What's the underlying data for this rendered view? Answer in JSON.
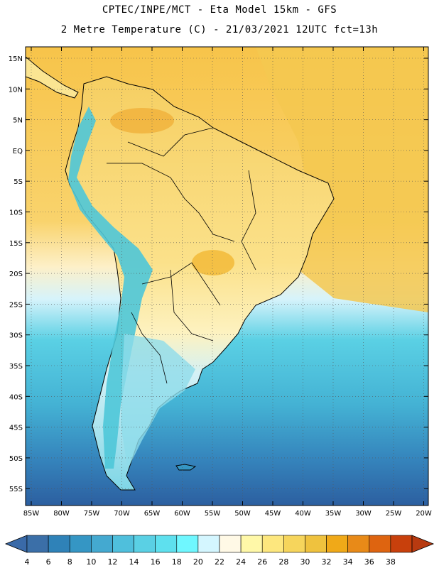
{
  "header": {
    "title_line1": "CPTEC/INPE/MCT -  Eta Model 15km - GFS",
    "title_line2": "2 Metre Temperature (C) - 21/03/2021 12UTC fct=13h"
  },
  "map": {
    "lat_labels": [
      "15N",
      "10N",
      "5N",
      "EQ",
      "5S",
      "10S",
      "15S",
      "20S",
      "25S",
      "30S",
      "35S",
      "40S",
      "45S",
      "50S",
      "55S"
    ],
    "lon_labels": [
      "85W",
      "80W",
      "75W",
      "70W",
      "65W",
      "60W",
      "55W",
      "50W",
      "45W",
      "40W",
      "35W",
      "30W",
      "25W",
      "20W"
    ],
    "gridlines": true,
    "ocean_color_north": "#f7c44a",
    "ocean_color_south": "#2f69a8",
    "land_color": "#fbe592",
    "andes_color": "#4ec6d8"
  },
  "colorbar": {
    "labels": [
      "4",
      "6",
      "8",
      "10",
      "12",
      "14",
      "16",
      "18",
      "20",
      "22",
      "24",
      "26",
      "28",
      "30",
      "32",
      "34",
      "36",
      "38"
    ],
    "colors": [
      "#3b6fa8",
      "#2f82b8",
      "#3596c4",
      "#44a9d0",
      "#4fbfdc",
      "#5ad0e4",
      "#5ee0ee",
      "#6ff7ff",
      "#d4f6ff",
      "#fff9e6",
      "#fff8a8",
      "#fde77e",
      "#f6d55c",
      "#efc23e",
      "#f0a918",
      "#e88a18",
      "#de6410",
      "#c8400c"
    ],
    "under_color": "#3a6aa8",
    "over_color": "#b83a10"
  }
}
